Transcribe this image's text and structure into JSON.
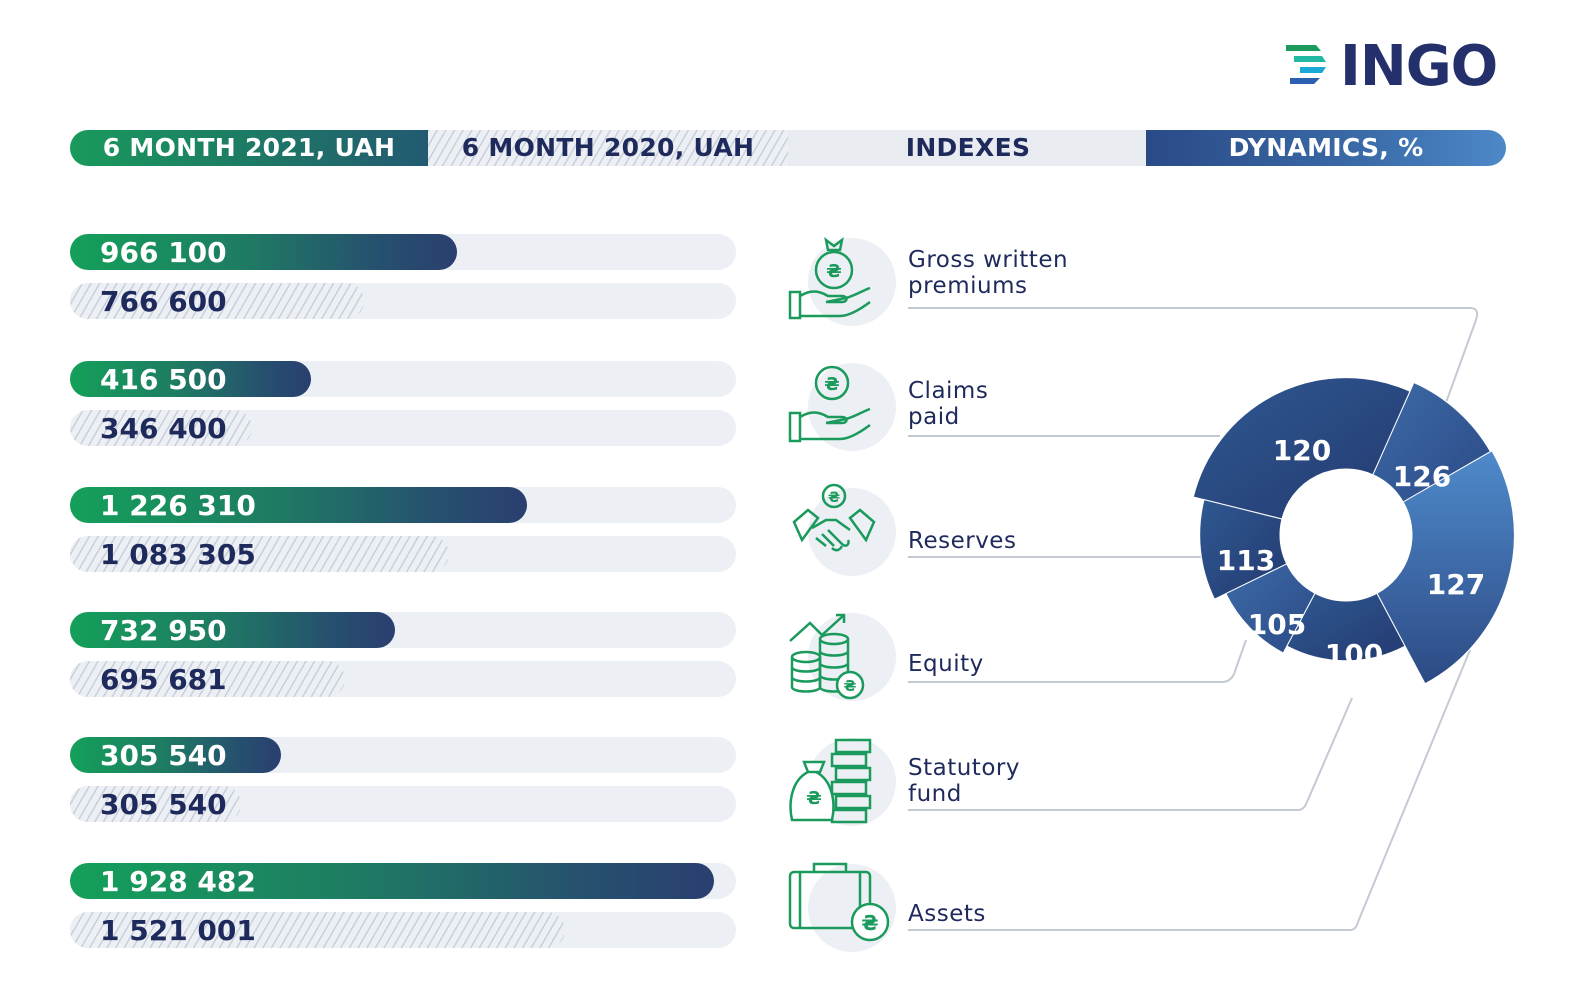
{
  "logo": {
    "text": "INGO"
  },
  "header": {
    "col_2021": "6 MONTH 2021, UAH",
    "col_2020": "6 MONTH 2020, UAH",
    "col_indexes": "INDEXES",
    "col_dynamics": "DYNAMICS, %"
  },
  "colors": {
    "green": "#14a05a",
    "navy": "#24306b",
    "blue_dark": "#2a4478",
    "blue_light": "#4d88c8",
    "track": "#eceff3"
  },
  "rows": [
    {
      "label_line1": "Gross written",
      "label_line2": "premiums",
      "icon": "money-bag-hand-icon",
      "cur_text": "966 100",
      "prev_text": "766 600"
    },
    {
      "label_line1": "Claims",
      "label_line2": "paid",
      "icon": "coin-hand-icon",
      "cur_text": "416 500",
      "prev_text": "346 400"
    },
    {
      "label_line1": "Reserves",
      "label_line2": "",
      "icon": "handshake-icon",
      "cur_text": "1 226 310",
      "prev_text": "1 083 305"
    },
    {
      "label_line1": "Equity",
      "label_line2": "",
      "icon": "coin-stacks-growth-icon",
      "cur_text": "732 950",
      "prev_text": "695 681"
    },
    {
      "label_line1": "Statutory",
      "label_line2": "fund",
      "icon": "money-bag-cash-icon",
      "cur_text": "305 540",
      "prev_text": "305 540"
    },
    {
      "label_line1": "Assets",
      "label_line2": "",
      "icon": "briefcase-coin-icon",
      "cur_text": "1 928 482",
      "prev_text": "1 521 001"
    }
  ],
  "chart_data": [
    {
      "type": "bar",
      "categories": [
        "Gross written premiums",
        "Claims paid",
        "Reserves",
        "Equity",
        "Statutory fund",
        "Assets"
      ],
      "series": [
        {
          "name": "6 MONTH 2021, UAH",
          "values": [
            966100,
            416500,
            1226310,
            732950,
            305540,
            1928482
          ]
        },
        {
          "name": "6 MONTH 2020, UAH",
          "values": [
            766600,
            346400,
            1083305,
            695681,
            305540,
            1521001
          ]
        }
      ]
    },
    {
      "type": "pie",
      "categories": [
        "Gross written premiums",
        "Claims paid",
        "Reserves",
        "Equity",
        "Statutory fund",
        "Assets"
      ],
      "values": [
        126,
        120,
        113,
        105,
        100,
        127
      ],
      "labels": [
        "126",
        "120",
        "113",
        "105",
        "100",
        "127"
      ]
    }
  ]
}
